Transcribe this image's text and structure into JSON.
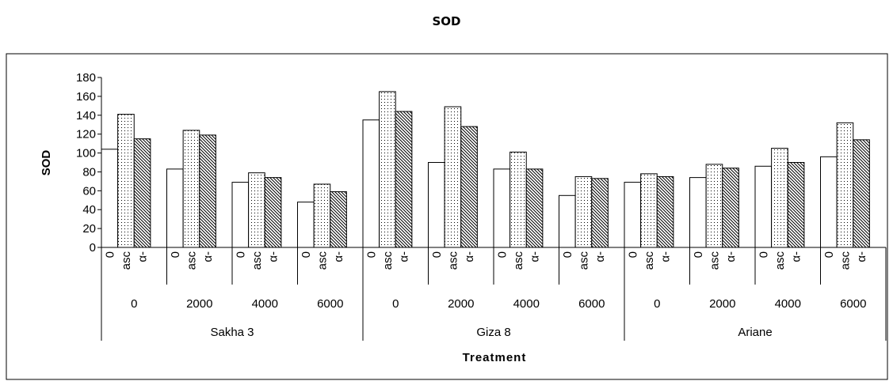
{
  "chart_data": {
    "type": "bar",
    "title": "SOD",
    "xlabel": "Treatment",
    "ylabel": "SOD",
    "ylim": [
      0,
      180
    ],
    "yticks": [
      0,
      20,
      40,
      60,
      80,
      100,
      120,
      140,
      160,
      180
    ],
    "grid": false,
    "bar_labels": [
      "0",
      "asc",
      "α-"
    ],
    "bar_fill_styles": [
      "white",
      "dotted",
      "diagonal-hatch"
    ],
    "groups": [
      {
        "name": "Sakha 3",
        "levels": [
          {
            "label": "0",
            "values": [
              104,
              141,
              115
            ]
          },
          {
            "label": "2000",
            "values": [
              83,
              124,
              119
            ]
          },
          {
            "label": "4000",
            "values": [
              69,
              79,
              74
            ]
          },
          {
            "label": "6000",
            "values": [
              48,
              67,
              59
            ]
          }
        ]
      },
      {
        "name": "Giza 8",
        "levels": [
          {
            "label": "0",
            "values": [
              135,
              165,
              144
            ]
          },
          {
            "label": "2000",
            "values": [
              90,
              149,
              128
            ]
          },
          {
            "label": "4000",
            "values": [
              83,
              101,
              83
            ]
          },
          {
            "label": "6000",
            "values": [
              55,
              75,
              73
            ]
          }
        ]
      },
      {
        "name": "Ariane",
        "levels": [
          {
            "label": "0",
            "values": [
              69,
              78,
              75
            ]
          },
          {
            "label": "2000",
            "values": [
              74,
              88,
              84
            ]
          },
          {
            "label": "4000",
            "values": [
              86,
              105,
              90
            ]
          },
          {
            "label": "6000",
            "values": [
              96,
              132,
              114
            ]
          }
        ]
      }
    ]
  }
}
